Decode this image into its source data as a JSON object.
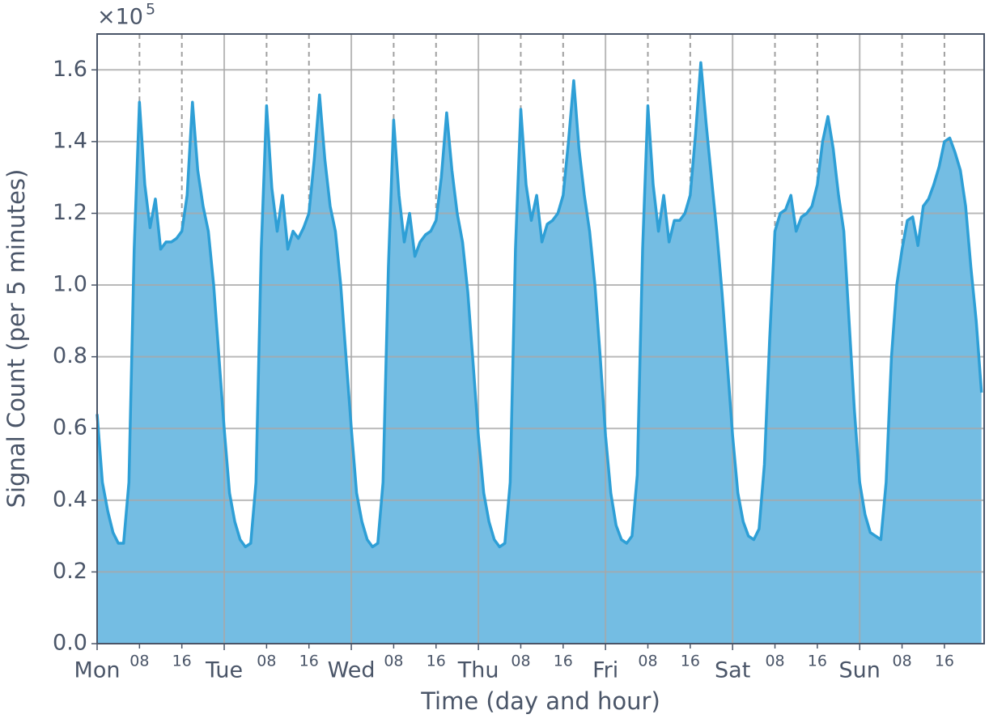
{
  "chart_data": {
    "type": "area",
    "x_label": "Time (day and hour)",
    "y_label": "Signal Count (per 5 minutes)",
    "y_multiplier": "×10",
    "y_multiplier_exponent": "5",
    "color": "#2e9fd6",
    "fill_color": "#74bde3",
    "grid": true,
    "xlim": [
      0,
      167.5
    ],
    "ylim": [
      0,
      1.7
    ],
    "yticks": [
      {
        "value": 0,
        "label": "0.0"
      },
      0.2,
      0.4,
      0.6,
      0.8,
      {
        "value": 1,
        "label": "1.0"
      },
      1.2,
      1.4,
      1.6
    ],
    "xticks": [
      {
        "value": 0,
        "label": "Mon"
      },
      {
        "value": 24,
        "label": "Tue"
      },
      {
        "value": 48,
        "label": "Wed"
      },
      {
        "value": 72,
        "label": "Thu"
      },
      {
        "value": 96,
        "label": "Fri"
      },
      {
        "value": 120,
        "label": "Sat"
      },
      {
        "value": 144,
        "label": "Sun"
      }
    ],
    "minor_xticks": [
      {
        "value": 8,
        "label": "08"
      },
      {
        "value": 16,
        "label": "16"
      },
      {
        "value": 32,
        "label": "08"
      },
      {
        "value": 40,
        "label": "16"
      },
      {
        "value": 56,
        "label": "08"
      },
      {
        "value": 64,
        "label": "16"
      },
      {
        "value": 80,
        "label": "08"
      },
      {
        "value": 88,
        "label": "16"
      },
      {
        "value": 104,
        "label": "08"
      },
      {
        "value": 112,
        "label": "16"
      },
      {
        "value": 128,
        "label": "08"
      },
      {
        "value": 136,
        "label": "16"
      },
      {
        "value": 152,
        "label": "08"
      },
      {
        "value": 160,
        "label": "16"
      }
    ],
    "x": [
      0,
      1,
      2,
      3,
      4,
      5,
      6,
      7,
      8,
      9,
      10,
      11,
      12,
      13,
      14,
      15,
      16,
      17,
      18,
      19,
      20,
      21,
      22,
      23,
      24,
      25,
      26,
      27,
      28,
      29,
      30,
      31,
      32,
      33,
      34,
      35,
      36,
      37,
      38,
      39,
      40,
      41,
      42,
      43,
      44,
      45,
      46,
      47,
      48,
      49,
      50,
      51,
      52,
      53,
      54,
      55,
      56,
      57,
      58,
      59,
      60,
      61,
      62,
      63,
      64,
      65,
      66,
      67,
      68,
      69,
      70,
      71,
      72,
      73,
      74,
      75,
      76,
      77,
      78,
      79,
      80,
      81,
      82,
      83,
      84,
      85,
      86,
      87,
      88,
      89,
      90,
      91,
      92,
      93,
      94,
      95,
      96,
      97,
      98,
      99,
      100,
      101,
      102,
      103,
      104,
      105,
      106,
      107,
      108,
      109,
      110,
      111,
      112,
      113,
      114,
      115,
      116,
      117,
      118,
      119,
      120,
      121,
      122,
      123,
      124,
      125,
      126,
      127,
      128,
      129,
      130,
      131,
      132,
      133,
      134,
      135,
      136,
      137,
      138,
      139,
      140,
      141,
      142,
      143,
      144,
      145,
      146,
      147,
      148,
      149,
      150,
      151,
      152,
      153,
      154,
      155,
      156,
      157,
      158,
      159,
      160,
      161,
      162,
      163,
      164,
      165,
      166,
      167
    ],
    "values": [
      0.64,
      0.45,
      0.37,
      0.31,
      0.28,
      0.28,
      0.45,
      1.1,
      1.51,
      1.28,
      1.16,
      1.24,
      1.1,
      1.12,
      1.12,
      1.13,
      1.15,
      1.25,
      1.51,
      1.32,
      1.22,
      1.15,
      1.0,
      0.8,
      0.6,
      0.42,
      0.34,
      0.29,
      0.27,
      0.28,
      0.45,
      1.1,
      1.5,
      1.27,
      1.15,
      1.25,
      1.1,
      1.15,
      1.13,
      1.16,
      1.2,
      1.35,
      1.53,
      1.35,
      1.22,
      1.15,
      1.0,
      0.8,
      0.6,
      0.42,
      0.34,
      0.29,
      0.27,
      0.28,
      0.45,
      1.05,
      1.46,
      1.25,
      1.12,
      1.2,
      1.08,
      1.12,
      1.14,
      1.15,
      1.18,
      1.3,
      1.48,
      1.32,
      1.2,
      1.12,
      0.98,
      0.78,
      0.58,
      0.42,
      0.34,
      0.29,
      0.27,
      0.28,
      0.45,
      1.1,
      1.49,
      1.28,
      1.18,
      1.25,
      1.12,
      1.17,
      1.18,
      1.2,
      1.25,
      1.4,
      1.57,
      1.38,
      1.25,
      1.15,
      1.0,
      0.8,
      0.58,
      0.42,
      0.33,
      0.29,
      0.28,
      0.3,
      0.47,
      1.1,
      1.5,
      1.28,
      1.15,
      1.25,
      1.12,
      1.18,
      1.18,
      1.2,
      1.25,
      1.42,
      1.62,
      1.45,
      1.3,
      1.15,
      0.98,
      0.78,
      0.58,
      0.42,
      0.34,
      0.3,
      0.29,
      0.32,
      0.5,
      0.85,
      1.15,
      1.2,
      1.21,
      1.25,
      1.15,
      1.19,
      1.2,
      1.22,
      1.28,
      1.4,
      1.47,
      1.38,
      1.25,
      1.15,
      0.9,
      0.65,
      0.45,
      0.36,
      0.31,
      0.3,
      0.29,
      0.45,
      0.8,
      1.0,
      1.1,
      1.18,
      1.19,
      1.11,
      1.22,
      1.24,
      1.28,
      1.33,
      1.4,
      1.41,
      1.37,
      1.32,
      1.22,
      1.05,
      0.9,
      0.7
    ]
  }
}
